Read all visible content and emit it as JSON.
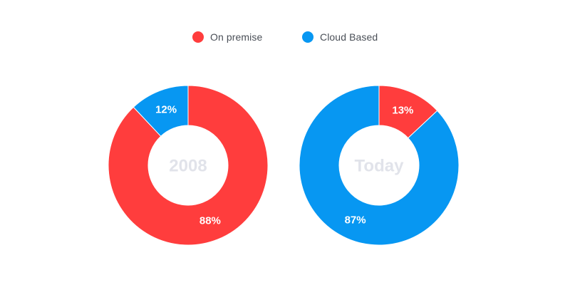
{
  "legend": [
    {
      "label": "On premise",
      "color": "#ff3d3d"
    },
    {
      "label": "Cloud Based",
      "color": "#0797f2"
    }
  ],
  "chart_data": [
    {
      "type": "pie",
      "center_label": "2008",
      "slices": [
        {
          "name": "On premise",
          "value": 88,
          "label": "88%",
          "color": "#ff3d3d"
        },
        {
          "name": "Cloud Based",
          "value": 12,
          "label": "12%",
          "color": "#0797f2"
        }
      ]
    },
    {
      "type": "pie",
      "center_label": "Today",
      "slices": [
        {
          "name": "On premise",
          "value": 13,
          "label": "13%",
          "color": "#ff3d3d"
        },
        {
          "name": "Cloud Based",
          "value": 87,
          "label": "87%",
          "color": "#0797f2"
        }
      ]
    }
  ]
}
